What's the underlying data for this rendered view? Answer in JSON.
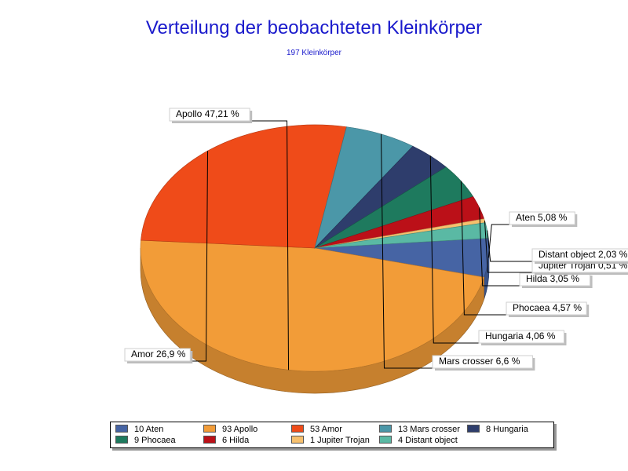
{
  "chart_data": {
    "type": "pie",
    "title": "Verteilung der beobachteten Kleinkörper",
    "subtitle": "197 Kleinkörper",
    "total": 197,
    "slices": [
      {
        "name": "Aten",
        "count": 10,
        "label": "Aten 5,08 %",
        "legend": "10 Aten",
        "color": "#4664a4"
      },
      {
        "name": "Apollo",
        "count": 93,
        "label": "Apollo 47,21 %",
        "legend": "93 Apollo",
        "color": "#f29c38"
      },
      {
        "name": "Amor",
        "count": 53,
        "label": "Amor 26,9 %",
        "legend": "53 Amor",
        "color": "#ef4b19"
      },
      {
        "name": "Mars crosser",
        "count": 13,
        "label": "Mars crosser 6,6 %",
        "legend": "13 Mars crosser",
        "color": "#4b97a8"
      },
      {
        "name": "Hungaria",
        "count": 8,
        "label": "Hungaria 4,06 %",
        "legend": "8 Hungaria",
        "color": "#2e3d6c"
      },
      {
        "name": "Phocaea",
        "count": 9,
        "label": "Phocaea 4,57 %",
        "legend": "9 Phocaea",
        "color": "#1e7a5e"
      },
      {
        "name": "Hilda",
        "count": 6,
        "label": "Hilda 3,05 %",
        "legend": "6 Hilda",
        "color": "#bb1018"
      },
      {
        "name": "Jupiter Trojan",
        "count": 1,
        "label": "Jupiter Trojan 0,51 %",
        "legend": "1 Jupiter Trojan",
        "color": "#f6c06e"
      },
      {
        "name": "Distant object",
        "count": 4,
        "label": "Distant object 2,03 %",
        "legend": "4 Distant object",
        "color": "#5ab9a4"
      }
    ],
    "legend_placement": "bottom"
  }
}
